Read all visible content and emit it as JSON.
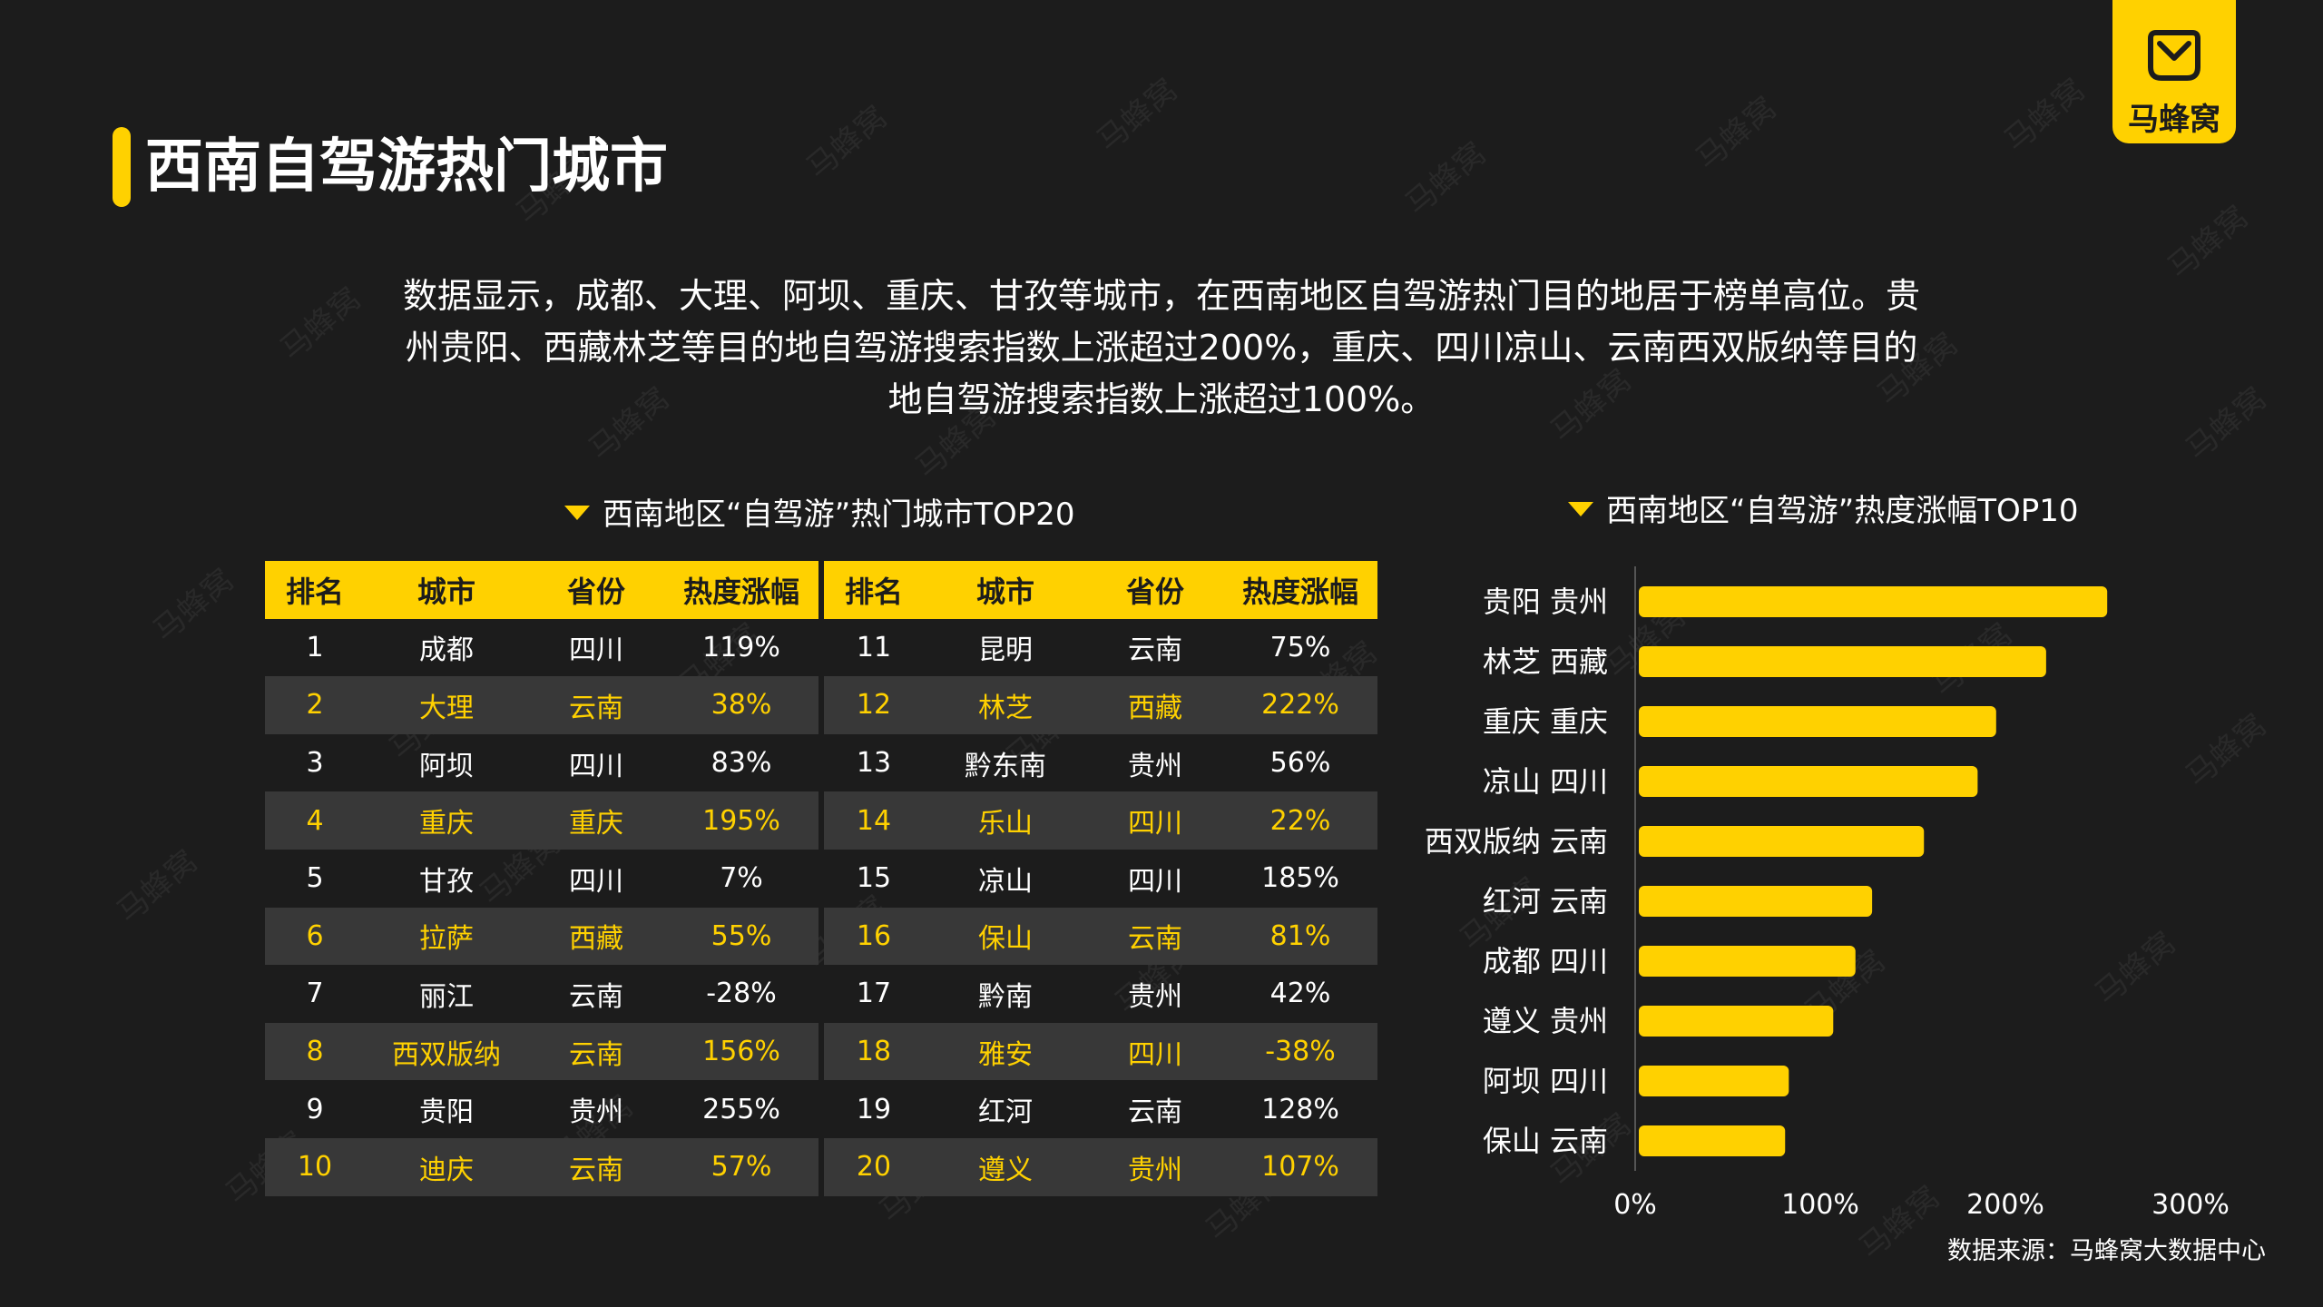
{
  "brand": {
    "name": "马蜂窝"
  },
  "page_title": "西南自驾游热门城市",
  "intro": "数据显示，成都、大理、阿坝、重庆、甘孜等城市，在西南地区自驾游热门目的地居于榜单高位。贵州贵阳、西藏林芝等目的地自驾游搜索指数上涨超过200%，重庆、四川凉山、云南西双版纳等目的地自驾游搜索指数上涨超过100%。",
  "intro_lines": [
    "数据显示，成都、大理、阿坝、重庆、甘孜等城市，在西南地区自驾游热门目的地居于榜单高位。贵",
    "州贵阳、西藏林芝等目的地自驾游搜索指数上涨超过200%，重庆、四川凉山、云南西双版纳等目的",
    "地自驾游搜索指数上涨超过100%。"
  ],
  "table_title": "西南地区“自驾游”热门城市TOP20",
  "chart_title": "西南地区“自驾游”热度涨幅TOP10",
  "table_headers": [
    "排名",
    "城市",
    "省份",
    "热度涨幅"
  ],
  "table_left": [
    [
      "1",
      "成都",
      "四川",
      "119%"
    ],
    [
      "2",
      "大理",
      "云南",
      "38%"
    ],
    [
      "3",
      "阿坝",
      "四川",
      "83%"
    ],
    [
      "4",
      "重庆",
      "重庆",
      "195%"
    ],
    [
      "5",
      "甘孜",
      "四川",
      "7%"
    ],
    [
      "6",
      "拉萨",
      "西藏",
      "55%"
    ],
    [
      "7",
      "丽江",
      "云南",
      "-28%"
    ],
    [
      "8",
      "西双版纳",
      "云南",
      "156%"
    ],
    [
      "9",
      "贵阳",
      "贵州",
      "255%"
    ],
    [
      "10",
      "迪庆",
      "云南",
      "57%"
    ]
  ],
  "table_right": [
    [
      "11",
      "昆明",
      "云南",
      "75%"
    ],
    [
      "12",
      "林芝",
      "西藏",
      "222%"
    ],
    [
      "13",
      "黔东南",
      "贵州",
      "56%"
    ],
    [
      "14",
      "乐山",
      "四川",
      "22%"
    ],
    [
      "15",
      "凉山",
      "四川",
      "185%"
    ],
    [
      "16",
      "保山",
      "云南",
      "81%"
    ],
    [
      "17",
      "黔南",
      "贵州",
      "42%"
    ],
    [
      "18",
      "雅安",
      "四川",
      "-38%"
    ],
    [
      "19",
      "红河",
      "云南",
      "128%"
    ],
    [
      "20",
      "遵义",
      "贵州",
      "107%"
    ]
  ],
  "chart_data": {
    "type": "bar",
    "orientation": "horizontal",
    "title": "西南地区“自驾游”热度涨幅TOP10",
    "categories": [
      "贵阳 贵州",
      "林芝 西藏",
      "重庆 重庆",
      "凉山 四川",
      "西双版纳 云南",
      "红河 云南",
      "成都 四川",
      "遵义 贵州",
      "阿坝 四川",
      "保山 云南"
    ],
    "values": [
      255,
      222,
      195,
      185,
      156,
      128,
      119,
      107,
      83,
      81
    ],
    "xlim": [
      0,
      300
    ],
    "xticks": [
      "0%",
      "100%",
      "200%",
      "300%"
    ],
    "bar_color": "#ffd100",
    "grid": false
  },
  "source": "数据来源：马蜂窝大数据中心",
  "colors": {
    "accent": "#ffd100",
    "background": "#1c1c1c",
    "row_alt": "#383838"
  }
}
